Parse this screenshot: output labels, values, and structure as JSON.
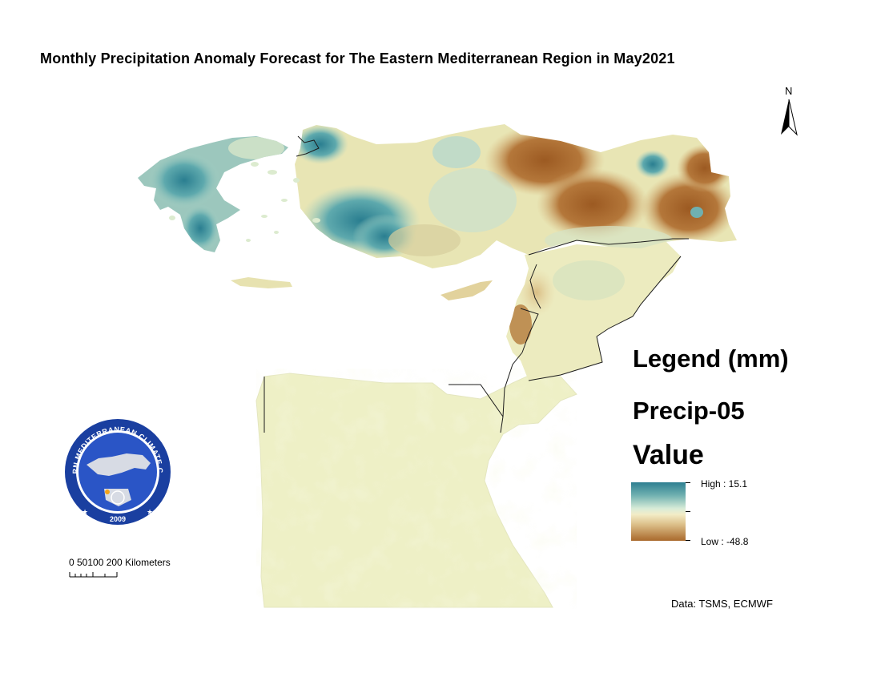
{
  "map": {
    "title": "Monthly Precipitation Anomaly Forecast for The Eastern Mediterranean Region in May2021",
    "north_arrow": {
      "label": "N",
      "icon": "north-arrow-icon"
    },
    "legend": {
      "title": "Legend (mm)",
      "layer_name": "Precip-05",
      "field_name": "Value",
      "high_label": "High : 15.1",
      "low_label": "Low : -48.8",
      "high_value": 15.1,
      "low_value": -48.8,
      "color_ramp": [
        "#2e7f91",
        "#6fb0b0",
        "#d8ecd8",
        "#f3ecc7",
        "#dcc08a",
        "#a9692c"
      ]
    },
    "scale_bar": {
      "label": "0 50100   200 Kilometers",
      "ticks_km": [
        0,
        50,
        100,
        200
      ]
    },
    "data_source": "Data:  TSMS, ECMWF",
    "logo": {
      "ring_text": "EASTERN MEDITERRANEAN CLIMATE CENTRE",
      "year": "2009",
      "colors": {
        "ring": "#1a3fa0",
        "inner": "#2a55c6",
        "land": "#d7dbe4"
      }
    },
    "colors": {
      "wet": "#2e7f91",
      "neutral": "#eef0c6",
      "dry": "#a9692c",
      "border": "#1c1c1c"
    }
  }
}
